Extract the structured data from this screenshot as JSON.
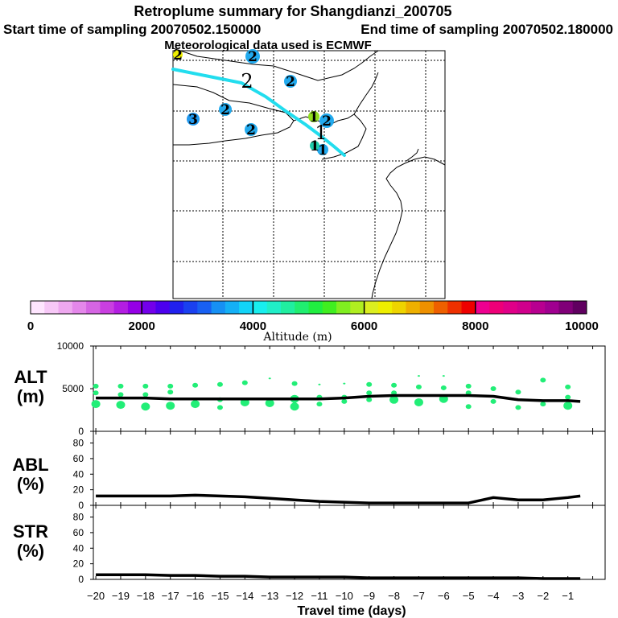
{
  "header": {
    "title": "Retroplume summary for Shangdianzi_200705",
    "start": "Start time of sampling 20070502.150000",
    "end": "End time of sampling 20070502.180000",
    "met": "Meteorological data used is ECMWF"
  },
  "colorbar": {
    "label": "Altitude (m)",
    "ticks": [
      "0",
      "2000",
      "4000",
      "6000",
      "8000",
      "10000"
    ],
    "colors": [
      "#ffe6ff",
      "#f7c8f7",
      "#eea8ef",
      "#e487ea",
      "#d565e3",
      "#c93fe0",
      "#b31ee2",
      "#9500e6",
      "#7300ea",
      "#4c00ee",
      "#2020ee",
      "#1a40f0",
      "#1860f2",
      "#1690f4",
      "#14b0f6",
      "#12d4f8",
      "#18eeee",
      "#20eec8",
      "#20eea0",
      "#20ee70",
      "#20ee40",
      "#40ee20",
      "#80ee20",
      "#b0ee20",
      "#dcee20",
      "#eeee00",
      "#eed400",
      "#eeb000",
      "#ee9000",
      "#ee6000",
      "#ee3000",
      "#ee0000",
      "#ee0090",
      "#ee0078",
      "#e00088",
      "#d0008c",
      "#b80090",
      "#a00090",
      "#800078",
      "#600060"
    ]
  },
  "map": {
    "plume_color": "#22ddee",
    "labels": [
      {
        "text": "2",
        "color": "#22aaee"
      },
      {
        "text": "2",
        "color": "#22aaee"
      },
      {
        "text": "2",
        "color": "#000000"
      },
      {
        "text": "2",
        "color": "#22aaee"
      },
      {
        "text": "2",
        "color": "#22aaee"
      },
      {
        "text": "3",
        "color": "#2299ee"
      },
      {
        "text": "2",
        "color": "#22aaee"
      },
      {
        "text": "1",
        "color": "#90dd20"
      },
      {
        "text": "1",
        "color": "#22aaee"
      },
      {
        "text": "1",
        "color": "#000000"
      },
      {
        "text": "1",
        "color": "#20ccaa"
      },
      {
        "text": "2",
        "color": "#eeee00"
      }
    ]
  },
  "panels": {
    "alt": {
      "label1": "ALT",
      "label2": "(m)"
    },
    "abl": {
      "label1": "ABL",
      "label2": "(%)"
    },
    "str": {
      "label1": "STR",
      "label2": "(%)"
    }
  },
  "chart_data": [
    {
      "type": "line",
      "title": "ALT",
      "ylabel": "ALT (m)",
      "xlabel": "Travel time (days)",
      "ylim": [
        0,
        10000
      ],
      "yticks": [
        "10000",
        "5000",
        "0"
      ],
      "x": [
        -20,
        -19,
        -18,
        -17,
        -16,
        -15,
        -14,
        -13,
        -12,
        -11,
        -10,
        -9,
        -8,
        -7,
        -6,
        -5,
        -4,
        -3,
        -2,
        -1,
        -0.5
      ],
      "values": [
        3900,
        3900,
        3900,
        3800,
        3800,
        3800,
        3800,
        3800,
        3800,
        3800,
        3900,
        4100,
        4200,
        4200,
        4200,
        4200,
        4100,
        3700,
        3600,
        3600,
        3500
      ],
      "scatter_color": "#22ee77",
      "scatter": [
        {
          "x": -20,
          "y": 5300,
          "s": 1
        },
        {
          "x": -20,
          "y": 4500,
          "s": 1
        },
        {
          "x": -20,
          "y": 3200,
          "s": 2
        },
        {
          "x": -19,
          "y": 5300,
          "s": 1
        },
        {
          "x": -19,
          "y": 4300,
          "s": 1
        },
        {
          "x": -19,
          "y": 3100,
          "s": 2
        },
        {
          "x": -18,
          "y": 5300,
          "s": 1
        },
        {
          "x": -18,
          "y": 4300,
          "s": 1
        },
        {
          "x": -18,
          "y": 2900,
          "s": 2
        },
        {
          "x": -17,
          "y": 5300,
          "s": 1
        },
        {
          "x": -17,
          "y": 4600,
          "s": 1
        },
        {
          "x": -17,
          "y": 3000,
          "s": 2
        },
        {
          "x": -16,
          "y": 5400,
          "s": 1
        },
        {
          "x": -16,
          "y": 3200,
          "s": 2
        },
        {
          "x": -15,
          "y": 5500,
          "s": 1
        },
        {
          "x": -15,
          "y": 3700,
          "s": 1
        },
        {
          "x": -15,
          "y": 2800,
          "s": 1
        },
        {
          "x": -14,
          "y": 5700,
          "s": 1
        },
        {
          "x": -14,
          "y": 3400,
          "s": 2
        },
        {
          "x": -13,
          "y": 6200,
          "s": 0
        },
        {
          "x": -13,
          "y": 3300,
          "s": 2
        },
        {
          "x": -12,
          "y": 5600,
          "s": 1
        },
        {
          "x": -12,
          "y": 3800,
          "s": 2
        },
        {
          "x": -12,
          "y": 2900,
          "s": 2
        },
        {
          "x": -11,
          "y": 5500,
          "s": 0
        },
        {
          "x": -11,
          "y": 4000,
          "s": 1
        },
        {
          "x": -11,
          "y": 3200,
          "s": 1
        },
        {
          "x": -10,
          "y": 5600,
          "s": 0
        },
        {
          "x": -10,
          "y": 4000,
          "s": 1
        },
        {
          "x": -10,
          "y": 3500,
          "s": 1
        },
        {
          "x": -9,
          "y": 5500,
          "s": 1
        },
        {
          "x": -9,
          "y": 4500,
          "s": 1
        },
        {
          "x": -9,
          "y": 3700,
          "s": 1
        },
        {
          "x": -8,
          "y": 5400,
          "s": 1
        },
        {
          "x": -8,
          "y": 4500,
          "s": 1
        },
        {
          "x": -8,
          "y": 3700,
          "s": 2
        },
        {
          "x": -7,
          "y": 6500,
          "s": 0
        },
        {
          "x": -7,
          "y": 5200,
          "s": 1
        },
        {
          "x": -7,
          "y": 3400,
          "s": 2
        },
        {
          "x": -6,
          "y": 6500,
          "s": 0
        },
        {
          "x": -6,
          "y": 5100,
          "s": 1
        },
        {
          "x": -6,
          "y": 3800,
          "s": 2
        },
        {
          "x": -5,
          "y": 5300,
          "s": 1
        },
        {
          "x": -5,
          "y": 4500,
          "s": 1
        },
        {
          "x": -5,
          "y": 2900,
          "s": 1
        },
        {
          "x": -4,
          "y": 5000,
          "s": 1
        },
        {
          "x": -4,
          "y": 3500,
          "s": 1
        },
        {
          "x": -3,
          "y": 4600,
          "s": 1
        },
        {
          "x": -3,
          "y": 2800,
          "s": 1
        },
        {
          "x": -2,
          "y": 6000,
          "s": 1
        },
        {
          "x": -2,
          "y": 3200,
          "s": 1
        },
        {
          "x": -1,
          "y": 5200,
          "s": 1
        },
        {
          "x": -1,
          "y": 4000,
          "s": 1
        },
        {
          "x": -1,
          "y": 3000,
          "s": 2
        }
      ]
    },
    {
      "type": "line",
      "title": "ABL",
      "ylabel": "ABL (%)",
      "xlabel": "Travel time (days)",
      "ylim": [
        0,
        95
      ],
      "yticks": [
        "80",
        "60",
        "40",
        "20",
        "0"
      ],
      "x": [
        -20,
        -19,
        -18,
        -17,
        -16,
        -15,
        -14,
        -13,
        -12,
        -11,
        -10,
        -9,
        -8,
        -7,
        -6,
        -5,
        -4,
        -3,
        -2,
        -1,
        -0.5
      ],
      "values": [
        12,
        12,
        12,
        12,
        13,
        12,
        11,
        9,
        7,
        5,
        4,
        3,
        3,
        3,
        3,
        3,
        10,
        7,
        7,
        10,
        12
      ]
    },
    {
      "type": "line",
      "title": "STR",
      "ylabel": "STR (%)",
      "xlabel": "Travel time (days)",
      "ylim": [
        0,
        95
      ],
      "yticks": [
        "80",
        "60",
        "40",
        "20",
        "0"
      ],
      "x": [
        -20,
        -19,
        -18,
        -17,
        -16,
        -15,
        -14,
        -13,
        -12,
        -11,
        -10,
        -9,
        -8,
        -7,
        -6,
        -5,
        -4,
        -3,
        -2,
        -1,
        -0.5
      ],
      "values": [
        6,
        6,
        6,
        5,
        5,
        4,
        4,
        3,
        3,
        3,
        3,
        2,
        2,
        2,
        2,
        2,
        2,
        2,
        1,
        1,
        1
      ]
    }
  ],
  "xaxis": {
    "label": "Travel time (days)",
    "ticks": [
      "−20",
      "−19",
      "−18",
      "−17",
      "−16",
      "−15",
      "−14",
      "−13",
      "−12",
      "−11",
      "−10",
      "−9",
      "−8",
      "−7",
      "−6",
      "−5",
      "−4",
      "−3",
      "−2",
      "−1"
    ]
  }
}
